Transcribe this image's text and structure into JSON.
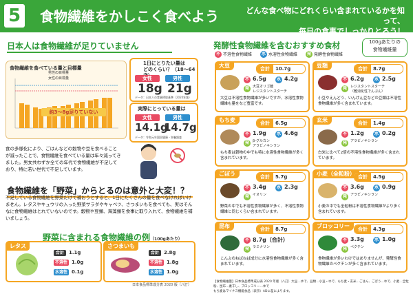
{
  "header": {
    "number": "5",
    "title": "食物繊維をかしこく食べよう",
    "subtitle_1": "どんな食べ物にどれくらい含まれているかを知って、",
    "subtitle_2": "毎日の食事でしっかりとろう！"
  },
  "left": {
    "section1_title": "日本人は食物繊維が足りていません",
    "chart": {
      "title": "食物繊維を食べている量と目標量",
      "legend_1": "男性の目標量",
      "legend_2": "女性の目標量",
      "banner": "約3〜8g足りていない"
    },
    "target_box": {
      "question_1": "1日にとりたい量は",
      "question_2": "どのくらい？（18〜64歳）",
      "female_label": "女性",
      "male_label": "男性",
      "female_value": "18g",
      "male_value": "21g",
      "note": "データ：日本人の食事摂取基準（2020年版）"
    },
    "actual_box": {
      "question": "実際にとっている量は",
      "female_label": "女性",
      "male_label": "男性",
      "female_value": "14.1g",
      "male_value": "14.7g",
      "note": "データ：令和元年国民健康・栄養調査"
    },
    "para1": "食の多様化により、ごはんなどの穀物や豆を食べることが減ったことで、食物繊維を食べている量は年々減ってきました。男女共わずか全ての年代で食物繊維が不足しており、特に若い世代で不足しています。",
    "section2_title": "食物繊維を「野菜」からとるのは意外と大変！？",
    "para2": "不足している食物繊維を野菜だけで補おうとすると、1日にたくさんの量を食べなければいけません。レタスやキュウリの入った野菜サラダやキャベツ、さつまいもを食べても、実はそんなに食物繊維はとれていないのです。穀物や豆類、海藻類を食事に取り入れて、食物繊維を補いましょう。",
    "section3_title": "野菜に含まれる食物繊維の例",
    "section3_unit": "（100gあたり）",
    "veg": [
      {
        "name": "レタス",
        "total_label": "合計",
        "total": "1.1g",
        "insol_label": "不溶性",
        "insol": "1.0g",
        "sol_label": "水溶性",
        "sol": "0.1g"
      },
      {
        "name": "さつまいも",
        "total_label": "合計",
        "total": "2.8g",
        "insol_label": "不溶性",
        "insol": "1.8g",
        "sol_label": "水溶性",
        "sol": "1.0g"
      }
    ],
    "source": "日本食品標準成分表 2020 版（八訂）"
  },
  "right": {
    "title": "発酵性食物繊維を含むおすすめ食材",
    "unit_1": "100gあたりの",
    "unit_2": "食物繊維量",
    "legend": {
      "f_symbol": "不",
      "f_label": "不溶性食物繊維",
      "s_symbol": "水",
      "s_label": "水溶性食物繊維",
      "h_symbol": "発",
      "h_label": "発酵性食物繊維"
    },
    "total_label": "合計",
    "foods": [
      {
        "name": "大豆",
        "total": "10.7g",
        "f": "6.5g",
        "s": "4.2g",
        "sub": "大豆オリゴ糖\nレジスタントスターチ",
        "desc": "大豆は不溶性食物繊維が多いですが、水溶性食物繊維も量をなど豊富です。"
      },
      {
        "name": "豆類",
        "total": "8.7g",
        "f": "6.2g",
        "s": "2.5g",
        "sub": "レジスタントスターチ\n（難消化性でんぷん）",
        "desc": "小豆やえんどう、いんげん豆などの豆類は不溶性食物繊維が多く含まれています。"
      },
      {
        "name": "もち麦",
        "total": "6.5g",
        "f": "1.9g",
        "s": "4.6g",
        "sub": "β-グルカン\nアラビノキシラン",
        "desc": "もち麦は穀物の中でも特に水溶性食物繊維が多く含まれています。"
      },
      {
        "name": "玄米",
        "total": "1.4g",
        "f": "1.2g",
        "s": "0.2g",
        "sub": "アラビノキシラン",
        "desc": "白米に比べて2倍の不溶性食物繊維が多く含まれています。"
      },
      {
        "name": "ごぼう",
        "total": "5.7g",
        "f": "3.4g",
        "s": "2.3g",
        "sub": "イヌリン",
        "desc": "野菜の中でも不溶性食物繊維が多く、不溶性食物繊維と同じくらい含まれています。"
      },
      {
        "name": "小麦（全粒粉）",
        "total": "4.5g",
        "f": "3.6g",
        "s": "0.9g",
        "sub": "アラビノキシラン",
        "desc": "小麦の中でも全粒粉は不溶性食物繊維がより多く含まれています。"
      },
      {
        "name": "昆布",
        "total": "8.7g",
        "f": "8.7g（合計）",
        "s": "",
        "sub": "ラミナリン",
        "desc": "こんぶのねばねば成分に水溶性食物繊維が多く含まれています。"
      },
      {
        "name": "ブロッコリー",
        "total": "4.3g",
        "f": "3.3g",
        "s": "1.0g",
        "sub": "ペクチン",
        "desc": "食物繊維が多いわけではありませんが、発酵性食物繊維のペクチンが多く含まれています。"
      }
    ],
    "footnote_1": "【食物繊維量】日本食品標準成分表 2020 年版（八訂）大豆…ゆで、豆類…小豆・ゆで、もち麦・玄米…ごはん、ごぼう…ゆで、小麦…全粒粉、昆布…素干し、ブロッコリー…ゆで",
    "footnote_2": "もち麦はマイナス機能食品（表示）ADに差によります。"
  }
}
